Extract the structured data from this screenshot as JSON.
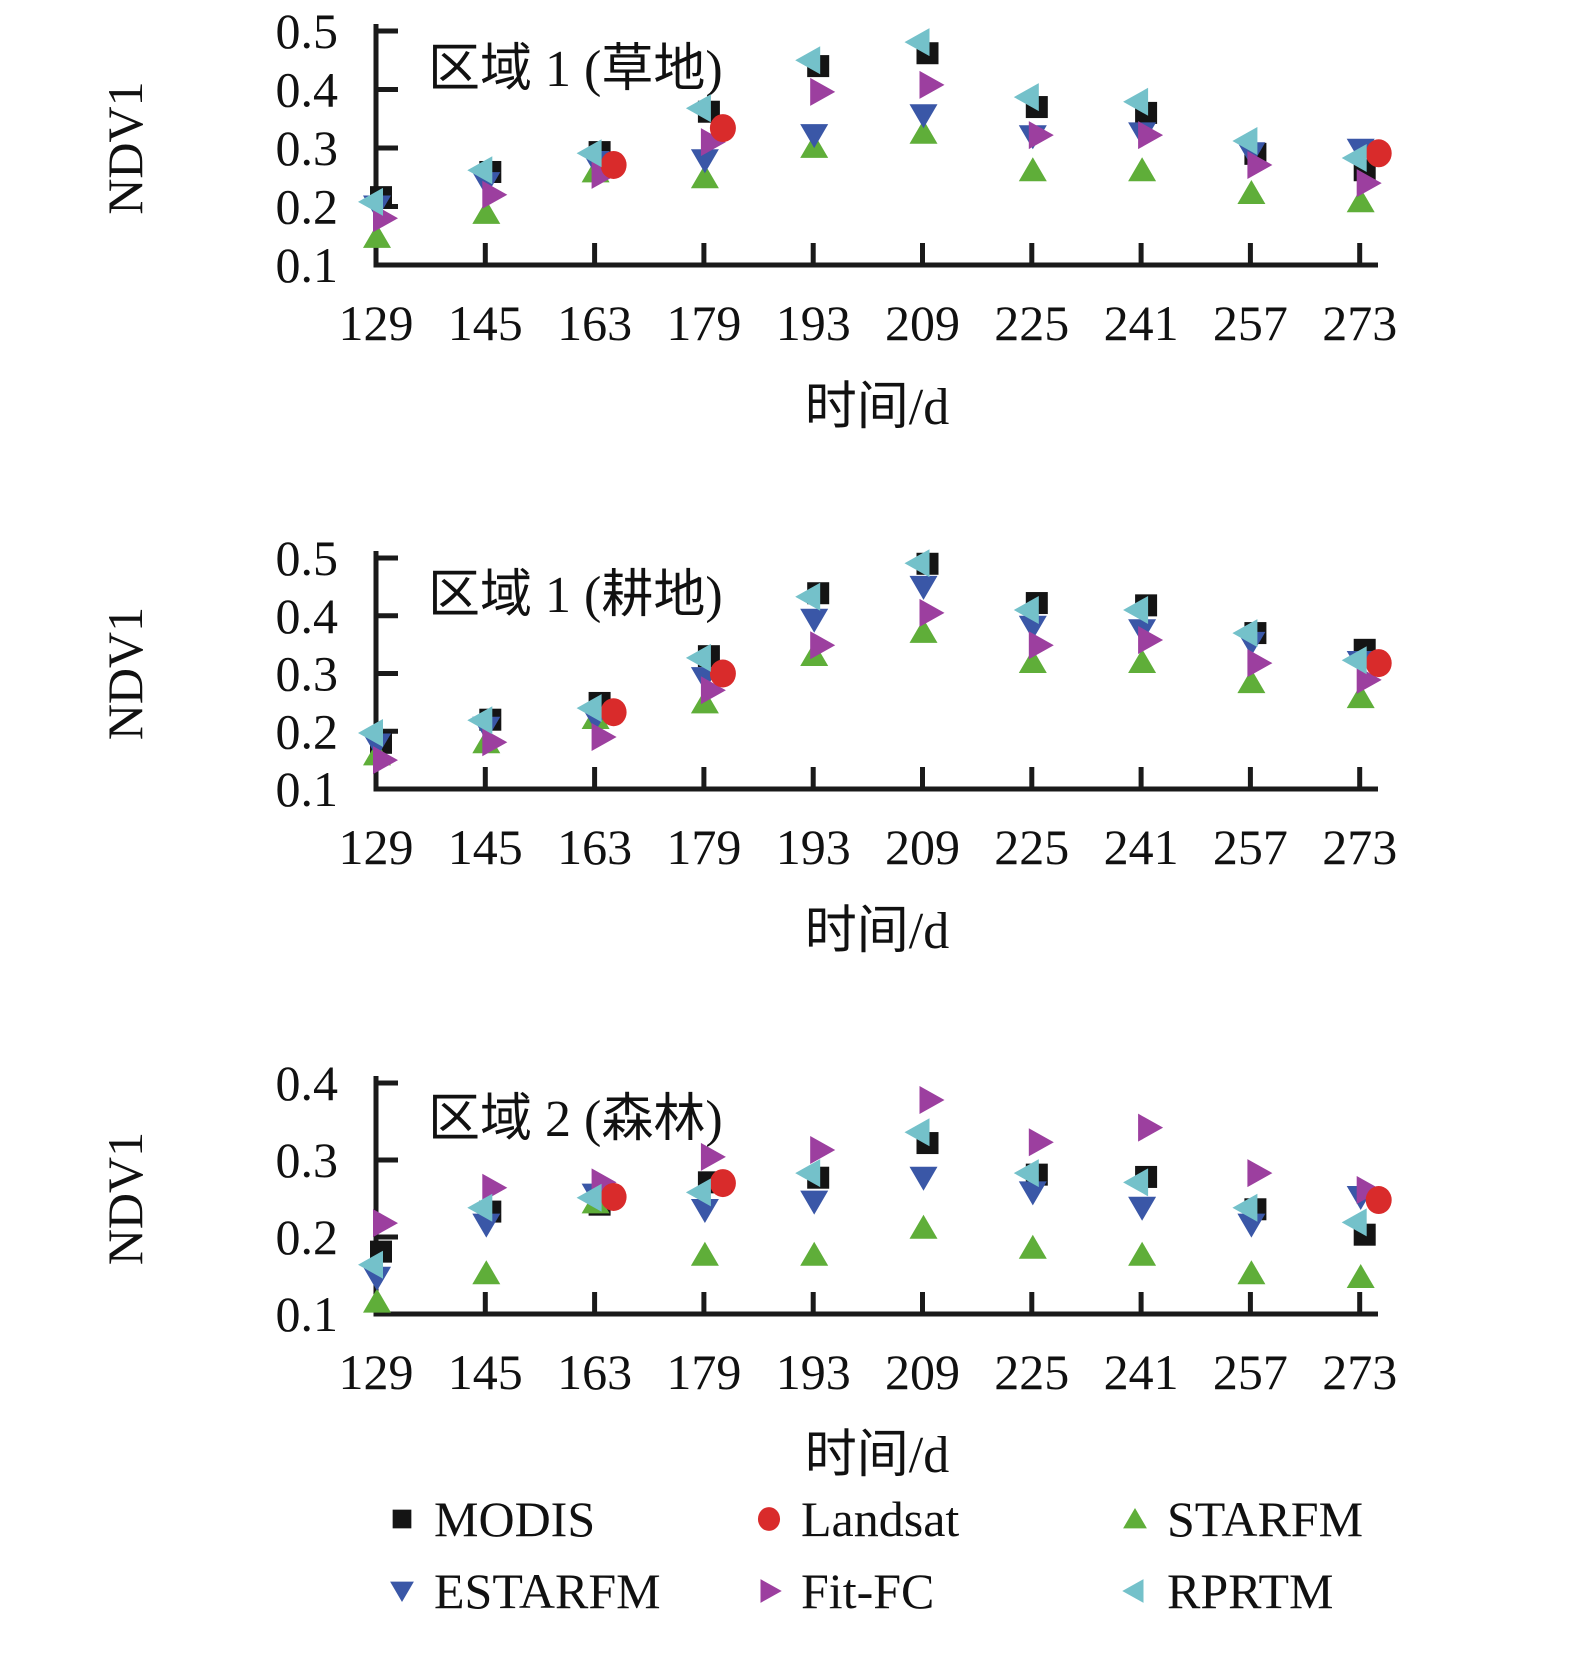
{
  "figure": {
    "x_axis_label": "时间/d",
    "y_axis_label": "NDV1",
    "background_color": "#ffffff",
    "axis_color": "#1a1a1a"
  },
  "legend": {
    "rows": [
      [
        {
          "label": "MODIS",
          "marker": "square",
          "color": "#141414"
        },
        {
          "label": "Landsat",
          "marker": "circle",
          "color": "#d92b2b"
        },
        {
          "label": "STARFM",
          "marker": "triangle-up",
          "color": "#5fae39"
        }
      ],
      [
        {
          "label": "ESTARFM",
          "marker": "triangle-down",
          "color": "#3a57a7"
        },
        {
          "label": "Fit-FC",
          "marker": "triangle-right",
          "color": "#9c3f9f"
        },
        {
          "label": "RPRTM",
          "marker": "triangle-left",
          "color": "#74c1ca"
        }
      ]
    ]
  },
  "chart_data": [
    {
      "type": "scatter",
      "title": "区域 1 (草地)",
      "xlabel": "时间/d",
      "ylabel": "NDV1",
      "x": [
        129,
        145,
        163,
        179,
        193,
        209,
        225,
        241,
        257,
        273
      ],
      "ylim": [
        0.1,
        0.5
      ],
      "yticks": [
        0.1,
        0.2,
        0.3,
        0.4,
        0.5
      ],
      "grid": false,
      "series": [
        {
          "name": "MODIS",
          "marker": "square",
          "color": "#141414",
          "values": [
            0.216,
            0.259,
            0.293,
            0.362,
            0.44,
            0.462,
            0.37,
            0.36,
            0.29,
            0.262
          ]
        },
        {
          "name": "Landsat",
          "marker": "circle",
          "color": "#d92b2b",
          "values": [
            null,
            null,
            0.271,
            0.334,
            null,
            null,
            null,
            null,
            null,
            0.291
          ]
        },
        {
          "name": "STARFM",
          "marker": "triangle-up",
          "color": "#5fae39",
          "values": [
            0.148,
            0.189,
            0.26,
            0.25,
            0.302,
            0.326,
            0.262,
            0.262,
            0.223,
            0.209
          ]
        },
        {
          "name": "ESTARFM",
          "marker": "triangle-down",
          "color": "#3a57a7",
          "values": [
            0.2,
            0.24,
            0.276,
            0.279,
            0.322,
            0.356,
            0.32,
            0.325,
            0.291,
            0.297
          ]
        },
        {
          "name": "Fit-FC",
          "marker": "triangle-right",
          "color": "#9c3f9f",
          "values": [
            0.18,
            0.22,
            0.254,
            0.31,
            0.396,
            0.408,
            0.322,
            0.322,
            0.271,
            0.24
          ]
        },
        {
          "name": "RPRTM",
          "marker": "triangle-left",
          "color": "#74c1ca",
          "values": [
            0.208,
            0.262,
            0.291,
            0.368,
            0.45,
            0.481,
            0.387,
            0.379,
            0.312,
            0.283
          ]
        }
      ]
    },
    {
      "type": "scatter",
      "title": "区域 1 (耕地)",
      "xlabel": "时间/d",
      "ylabel": "NDV1",
      "x": [
        129,
        145,
        163,
        179,
        193,
        209,
        225,
        241,
        257,
        273
      ],
      "ylim": [
        0.1,
        0.5
      ],
      "yticks": [
        0.1,
        0.2,
        0.3,
        0.4,
        0.5
      ],
      "grid": false,
      "series": [
        {
          "name": "MODIS",
          "marker": "square",
          "color": "#141414",
          "values": [
            0.18,
            0.22,
            0.249,
            0.33,
            0.439,
            0.49,
            0.422,
            0.418,
            0.37,
            0.341
          ]
        },
        {
          "name": "Landsat",
          "marker": "circle",
          "color": "#d92b2b",
          "values": [
            null,
            null,
            0.233,
            0.3,
            null,
            null,
            null,
            null,
            null,
            0.318
          ]
        },
        {
          "name": "STARFM",
          "marker": "triangle-up",
          "color": "#5fae39",
          "values": [
            0.16,
            0.181,
            0.223,
            0.25,
            0.332,
            0.372,
            0.32,
            0.32,
            0.285,
            0.259
          ]
        },
        {
          "name": "ESTARFM",
          "marker": "triangle-down",
          "color": "#3a57a7",
          "values": [
            0.177,
            0.206,
            0.223,
            0.292,
            0.393,
            0.45,
            0.381,
            0.375,
            0.353,
            0.32
          ]
        },
        {
          "name": "Fit-FC",
          "marker": "triangle-right",
          "color": "#9c3f9f",
          "values": [
            0.15,
            0.181,
            0.19,
            0.271,
            0.349,
            0.405,
            0.349,
            0.358,
            0.318,
            0.289
          ]
        },
        {
          "name": "RPRTM",
          "marker": "triangle-left",
          "color": "#74c1ca",
          "values": [
            0.197,
            0.219,
            0.24,
            0.327,
            0.433,
            0.491,
            0.41,
            0.41,
            0.37,
            0.323
          ]
        }
      ]
    },
    {
      "type": "scatter",
      "title": "区域 2 (森林)",
      "xlabel": "时间/d",
      "ylabel": "NDV1",
      "x": [
        129,
        145,
        163,
        179,
        193,
        209,
        225,
        241,
        257,
        273
      ],
      "ylim": [
        0.1,
        0.4
      ],
      "yticks": [
        0.1,
        0.2,
        0.3,
        0.4
      ],
      "grid": false,
      "series": [
        {
          "name": "MODIS",
          "marker": "square",
          "color": "#141414",
          "values": [
            0.181,
            0.233,
            0.242,
            0.271,
            0.277,
            0.322,
            0.281,
            0.278,
            0.236,
            0.203
          ]
        },
        {
          "name": "Landsat",
          "marker": "circle",
          "color": "#d92b2b",
          "values": [
            null,
            null,
            0.252,
            0.27,
            null,
            null,
            null,
            null,
            null,
            0.248
          ]
        },
        {
          "name": "STARFM",
          "marker": "triangle-up",
          "color": "#5fae39",
          "values": [
            0.116,
            0.153,
            0.245,
            0.177,
            0.177,
            0.212,
            0.186,
            0.177,
            0.153,
            0.148
          ]
        },
        {
          "name": "ESTARFM",
          "marker": "triangle-down",
          "color": "#3a57a7",
          "values": [
            0.147,
            0.216,
            0.255,
            0.235,
            0.246,
            0.277,
            0.258,
            0.238,
            0.216,
            0.252
          ]
        },
        {
          "name": "Fit-FC",
          "marker": "triangle-right",
          "color": "#9c3f9f",
          "values": [
            0.218,
            0.264,
            0.271,
            0.304,
            0.313,
            0.378,
            0.323,
            0.342,
            0.283,
            0.261
          ]
        },
        {
          "name": "RPRTM",
          "marker": "triangle-left",
          "color": "#74c1ca",
          "values": [
            0.164,
            0.238,
            0.251,
            0.258,
            0.283,
            0.336,
            0.283,
            0.271,
            0.238,
            0.219
          ]
        }
      ]
    }
  ]
}
